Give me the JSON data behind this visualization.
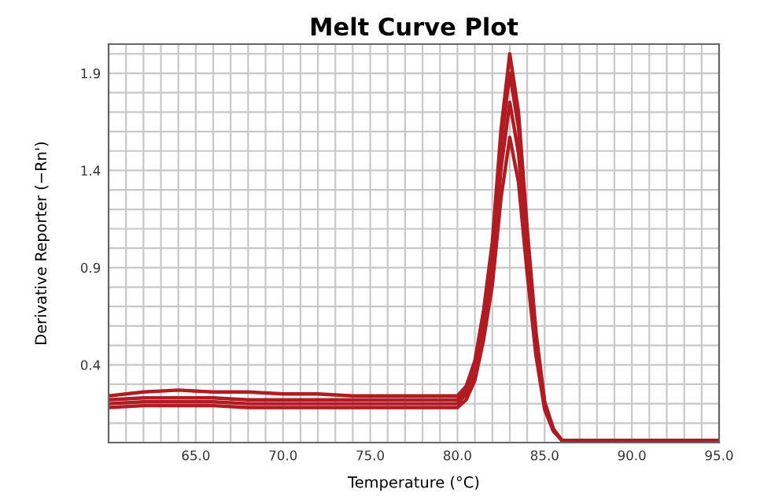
{
  "chart_data": {
    "type": "line",
    "title": "Melt Curve Plot",
    "xlabel": "Temperature (°C)",
    "ylabel": "Derivative Reporter (−Rn')",
    "x": [
      60,
      62,
      64,
      66,
      68,
      70,
      72,
      74,
      76,
      78,
      80,
      80.5,
      81,
      81.5,
      82,
      82.5,
      83,
      83.5,
      84,
      84.5,
      85,
      85.5,
      86,
      88,
      90,
      95
    ],
    "series": [
      {
        "color": "#b01c22",
        "values": [
          0.24,
          0.26,
          0.27,
          0.26,
          0.26,
          0.25,
          0.25,
          0.24,
          0.24,
          0.24,
          0.24,
          0.29,
          0.42,
          0.68,
          1.03,
          1.61,
          2.0,
          1.7,
          1.1,
          0.57,
          0.21,
          0.07,
          0.01,
          0.01,
          0.01,
          0.01
        ]
      },
      {
        "color": "#b01c22",
        "values": [
          0.22,
          0.23,
          0.23,
          0.23,
          0.22,
          0.22,
          0.22,
          0.22,
          0.22,
          0.22,
          0.22,
          0.27,
          0.39,
          0.64,
          0.98,
          1.53,
          1.9,
          1.62,
          1.05,
          0.54,
          0.2,
          0.07,
          0.01,
          0.01,
          0.01,
          0.01
        ]
      },
      {
        "color": "#b01c22",
        "values": [
          0.2,
          0.21,
          0.21,
          0.21,
          0.2,
          0.2,
          0.2,
          0.2,
          0.2,
          0.2,
          0.2,
          0.25,
          0.36,
          0.59,
          0.9,
          1.41,
          1.75,
          1.49,
          0.97,
          0.5,
          0.18,
          0.06,
          0.01,
          0.01,
          0.01,
          0.01
        ]
      },
      {
        "color": "#b01c22",
        "values": [
          0.18,
          0.19,
          0.19,
          0.19,
          0.18,
          0.18,
          0.18,
          0.18,
          0.18,
          0.18,
          0.18,
          0.22,
          0.32,
          0.53,
          0.81,
          1.26,
          1.57,
          1.34,
          0.87,
          0.45,
          0.17,
          0.06,
          0.01,
          0.01,
          0.01,
          0.01
        ]
      }
    ],
    "xlim": [
      60,
      95
    ],
    "ylim": [
      0,
      2.05
    ],
    "xticks": [
      {
        "value": 60,
        "label": null
      },
      {
        "value": 61,
        "label": null
      },
      {
        "value": 62,
        "label": null
      },
      {
        "value": 63,
        "label": null
      },
      {
        "value": 64,
        "label": null
      },
      {
        "value": 65,
        "label": "65.0"
      },
      {
        "value": 66,
        "label": null
      },
      {
        "value": 67,
        "label": null
      },
      {
        "value": 68,
        "label": null
      },
      {
        "value": 69,
        "label": null
      },
      {
        "value": 70,
        "label": "70.0"
      },
      {
        "value": 71,
        "label": null
      },
      {
        "value": 72,
        "label": null
      },
      {
        "value": 73,
        "label": null
      },
      {
        "value": 74,
        "label": null
      },
      {
        "value": 75,
        "label": "75.0"
      },
      {
        "value": 76,
        "label": null
      },
      {
        "value": 77,
        "label": null
      },
      {
        "value": 78,
        "label": null
      },
      {
        "value": 79,
        "label": null
      },
      {
        "value": 80,
        "label": "80.0"
      },
      {
        "value": 81,
        "label": null
      },
      {
        "value": 82,
        "label": null
      },
      {
        "value": 83,
        "label": null
      },
      {
        "value": 84,
        "label": null
      },
      {
        "value": 85,
        "label": "85.0"
      },
      {
        "value": 86,
        "label": null
      },
      {
        "value": 87,
        "label": null
      },
      {
        "value": 88,
        "label": null
      },
      {
        "value": 89,
        "label": null
      },
      {
        "value": 90,
        "label": "90.0"
      },
      {
        "value": 91,
        "label": null
      },
      {
        "value": 92,
        "label": null
      },
      {
        "value": 93,
        "label": null
      },
      {
        "value": 94,
        "label": null
      },
      {
        "value": 95,
        "label": "95.0"
      }
    ],
    "yticks": [
      {
        "value": 0.1,
        "label": null
      },
      {
        "value": 0.2,
        "label": null
      },
      {
        "value": 0.3,
        "label": null
      },
      0.4,
      {
        "value": 0.5,
        "label": null
      },
      {
        "value": 0.6,
        "label": null
      },
      {
        "value": 0.7,
        "label": null
      },
      {
        "value": 0.8,
        "label": null
      },
      0.9,
      {
        "value": 1.0,
        "label": null
      },
      {
        "value": 1.1,
        "label": null
      },
      {
        "value": 1.2,
        "label": null
      },
      {
        "value": 1.3,
        "label": null
      },
      1.4,
      {
        "value": 1.5,
        "label": null
      },
      {
        "value": 1.6,
        "label": null
      },
      {
        "value": 1.7,
        "label": null
      },
      {
        "value": 1.8,
        "label": null
      },
      1.9,
      {
        "value": 2.0,
        "label": null
      }
    ],
    "grid": true,
    "marker": "none",
    "line_style": "solid"
  }
}
